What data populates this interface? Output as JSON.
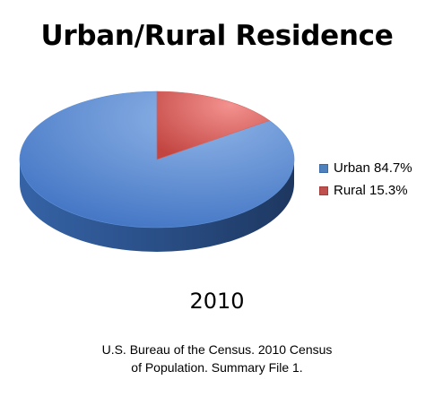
{
  "chart_data": {
    "type": "pie",
    "title": "Urban/Rural Residence",
    "categories": [
      "Urban",
      "Rural"
    ],
    "values": [
      84.7,
      15.3
    ],
    "unit": "%",
    "colors": [
      "#4f81bd",
      "#c0504d"
    ],
    "legend": {
      "position": "right",
      "entries": [
        "Urban 84.7%",
        "Rural 15.3%"
      ]
    },
    "style": "3d"
  },
  "year_label": "2010",
  "source": {
    "line1": "U.S. Bureau of the Census. 2010 Census",
    "line2": "of Population. Summary File 1."
  }
}
